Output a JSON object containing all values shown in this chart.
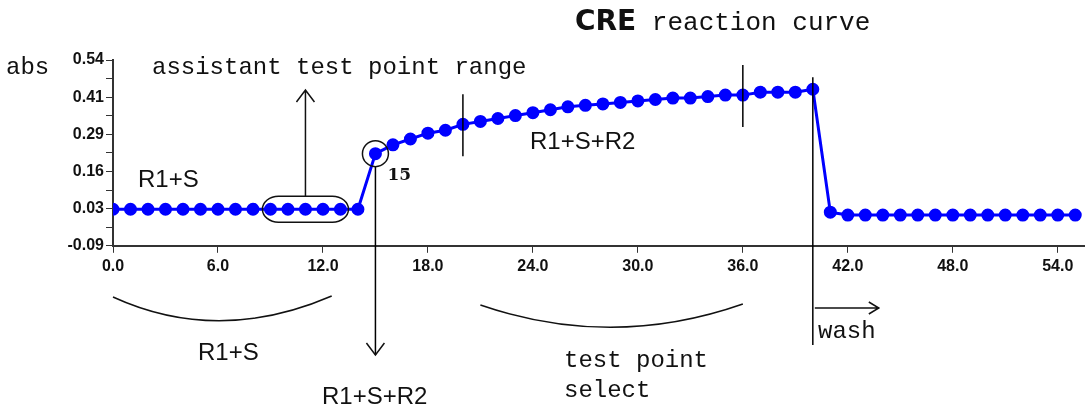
{
  "chart_data": {
    "type": "line",
    "title": "CRE reaction curve",
    "ylabel": "abs",
    "x": [
      0,
      1,
      2,
      3,
      4,
      5,
      6,
      7,
      8,
      9,
      10,
      11,
      12,
      13,
      14,
      15,
      16,
      17,
      18,
      19,
      20,
      21,
      22,
      23,
      24,
      25,
      26,
      27,
      28,
      29,
      30,
      31,
      32,
      33,
      34,
      35,
      36,
      37,
      38,
      39,
      40,
      41,
      42,
      43,
      44,
      45,
      46,
      47,
      48,
      49,
      50,
      51,
      52,
      53,
      54,
      55
    ],
    "series": [
      {
        "color": "#0000ff",
        "values": [
          0.03,
          0.03,
          0.03,
          0.03,
          0.03,
          0.03,
          0.03,
          0.03,
          0.03,
          0.03,
          0.03,
          0.03,
          0.03,
          0.03,
          0.03,
          0.22,
          0.25,
          0.27,
          0.29,
          0.3,
          0.32,
          0.33,
          0.34,
          0.35,
          0.36,
          0.37,
          0.38,
          0.385,
          0.39,
          0.395,
          0.4,
          0.405,
          0.41,
          0.41,
          0.415,
          0.42,
          0.42,
          0.43,
          0.43,
          0.43,
          0.44,
          0.02,
          0.01,
          0.01,
          0.01,
          0.01,
          0.01,
          0.01,
          0.01,
          0.01,
          0.01,
          0.01,
          0.01,
          0.01,
          0.01,
          0.01
        ]
      }
    ],
    "xlim": [
      0,
      55.5
    ],
    "xticks": [
      {
        "value": 0,
        "label": "0.0"
      },
      {
        "value": 6,
        "label": "6.0"
      },
      {
        "value": 12,
        "label": "12.0"
      },
      {
        "value": 18,
        "label": "18.0"
      },
      {
        "value": 24,
        "label": "24.0"
      },
      {
        "value": 30,
        "label": "30.0"
      },
      {
        "value": 36,
        "label": "36.0"
      },
      {
        "value": 42,
        "label": "42.0"
      },
      {
        "value": 48,
        "label": "48.0"
      },
      {
        "value": 54,
        "label": "54.0"
      }
    ],
    "ylim": [
      -0.095,
      0.54
    ],
    "yticks": [
      {
        "value": -0.095,
        "label": "-0.09"
      },
      {
        "value": -0.0315,
        "label": null
      },
      {
        "value": 0.032,
        "label": "0.03"
      },
      {
        "value": 0.0955,
        "label": null
      },
      {
        "value": 0.159,
        "label": "0.16"
      },
      {
        "value": 0.2225,
        "label": null
      },
      {
        "value": 0.286,
        "label": "0.29"
      },
      {
        "value": 0.3495,
        "label": null
      },
      {
        "value": 0.413,
        "label": "0.41"
      },
      {
        "value": 0.4765,
        "label": null
      },
      {
        "value": 0.54,
        "label": "0.54"
      }
    ],
    "ref_lines": [
      {
        "axis": "x",
        "value": 20
      },
      {
        "axis": "x",
        "value": 36
      },
      {
        "axis": "x",
        "value": 15
      },
      {
        "axis": "x",
        "value": 40
      }
    ],
    "annotations": [
      "assistant test point range",
      "R1+S",
      {
        "text": "15",
        "x": 15,
        "y": 0.22
      },
      "R1+S+R2",
      "R1+S",
      "R1+S+R2",
      "test point select",
      "wash"
    ],
    "grid": false,
    "legend": false,
    "marker": "circle",
    "line_style": "solid"
  }
}
